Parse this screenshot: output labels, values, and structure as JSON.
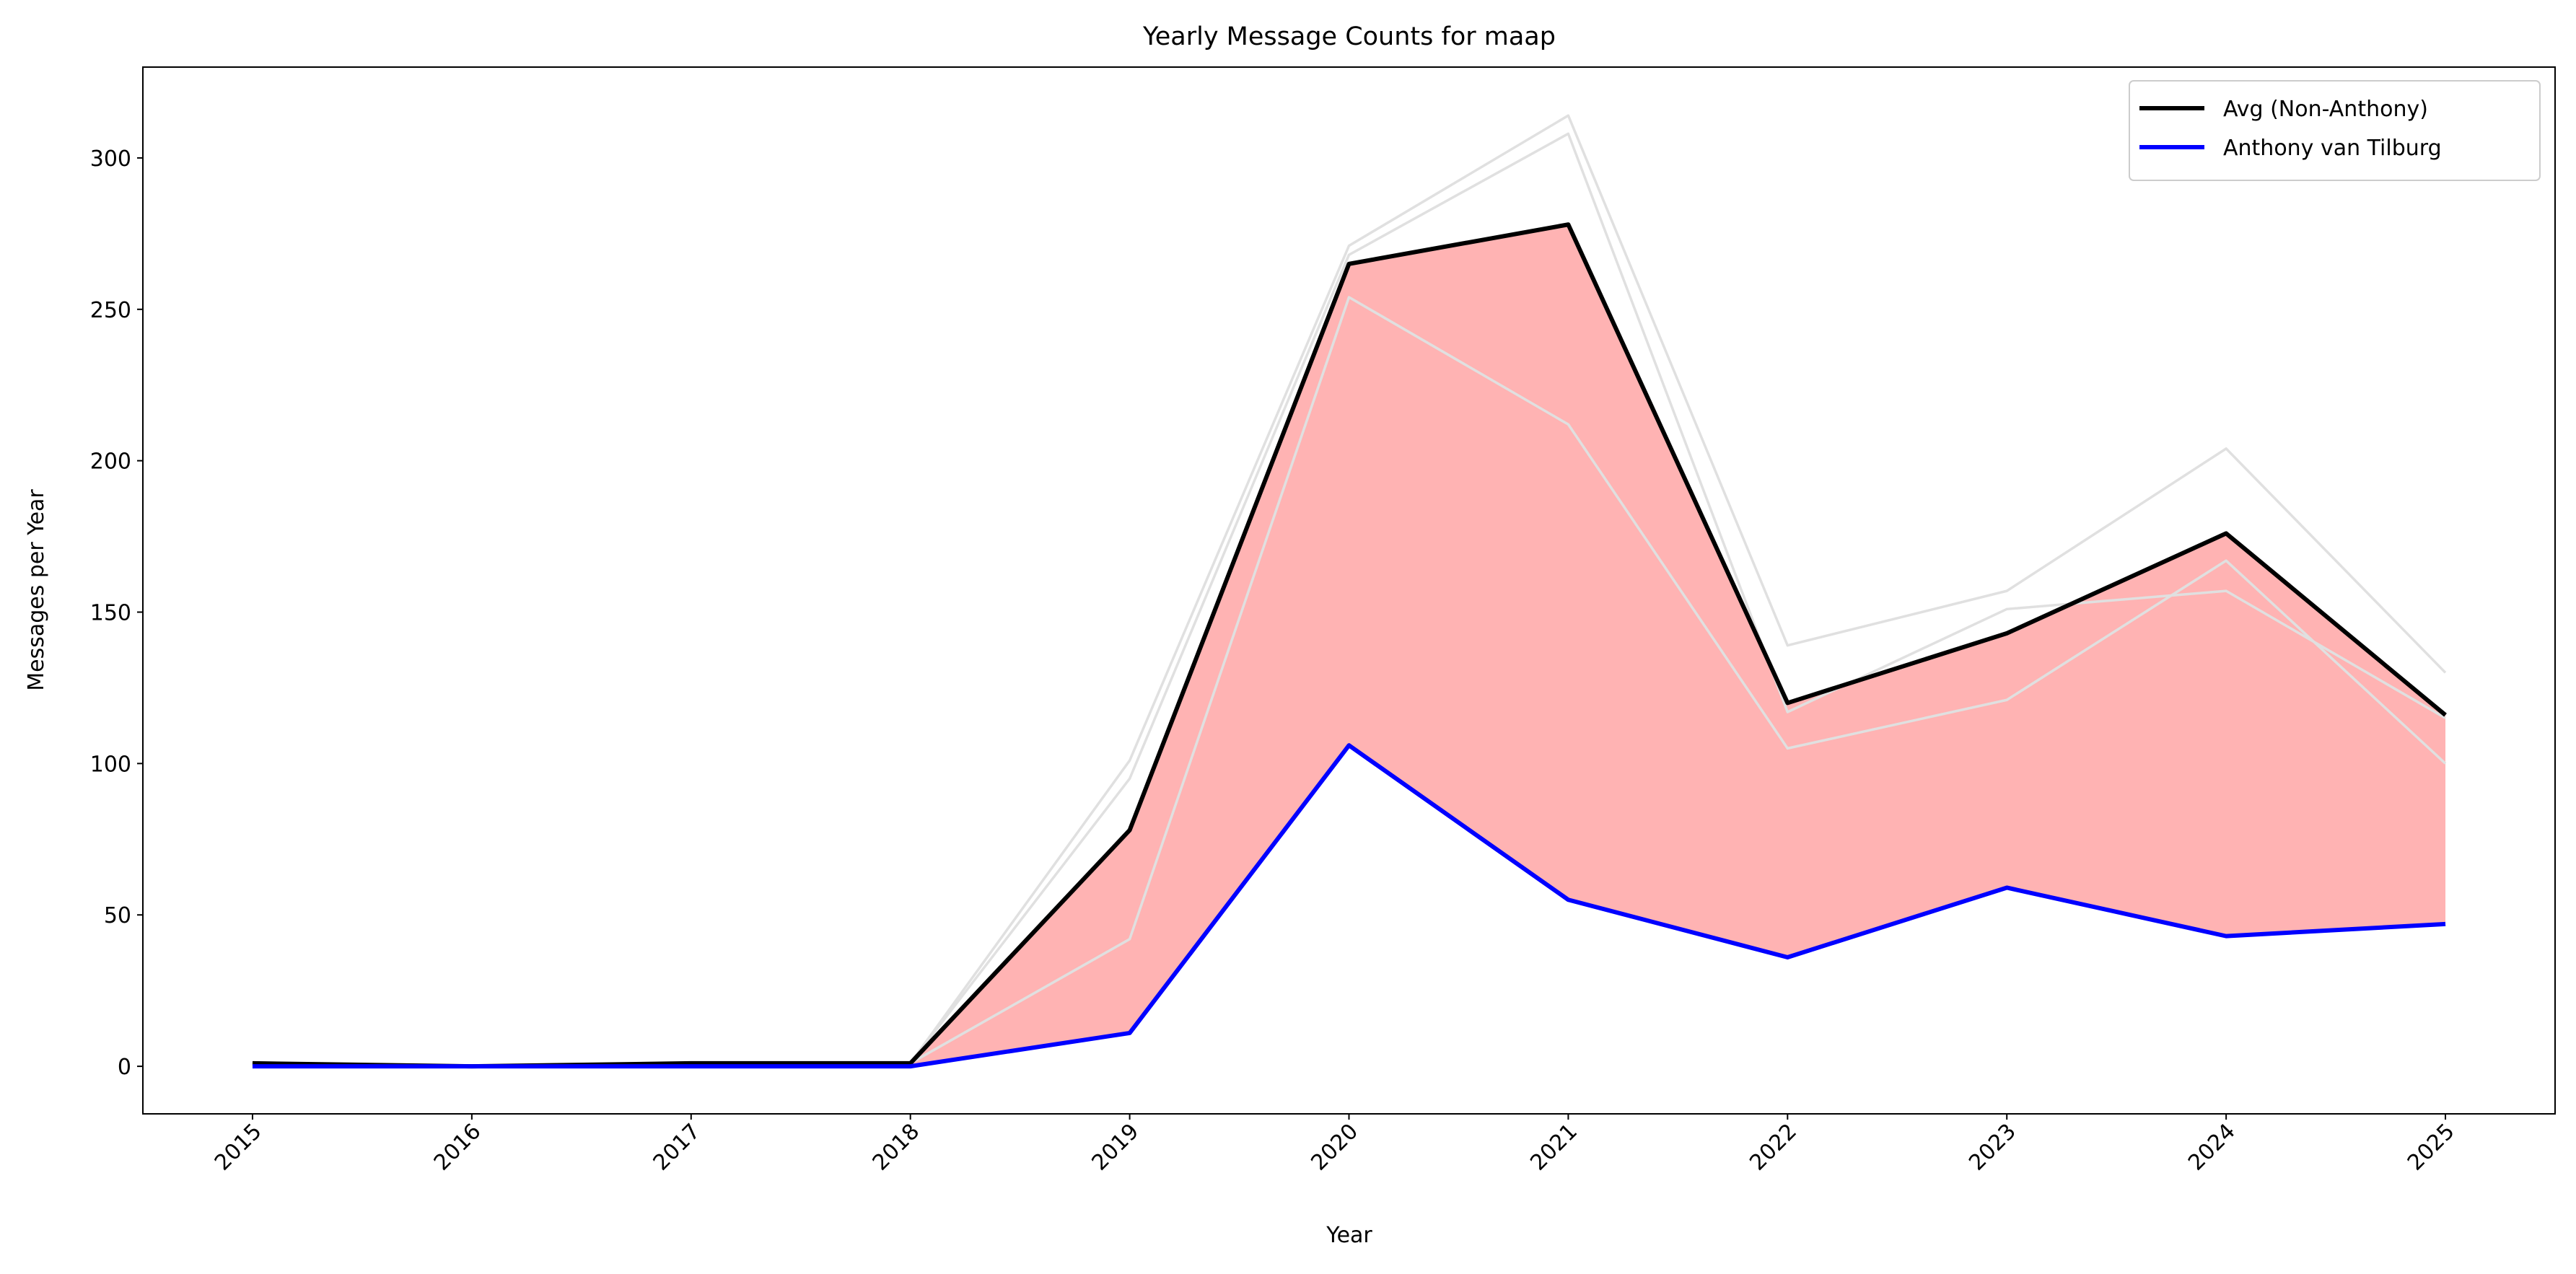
{
  "chart_data": {
    "type": "line",
    "title": "Yearly Message Counts for maap",
    "x_label": "Year",
    "y_label": "Messages per Year",
    "x": [
      2015,
      2016,
      2017,
      2018,
      2019,
      2020,
      2021,
      2022,
      2023,
      2024,
      2025
    ],
    "xlim": [
      2014.5,
      2025.5
    ],
    "xticks": [
      2015,
      2016,
      2017,
      2018,
      2019,
      2020,
      2021,
      2022,
      2023,
      2024,
      2025
    ],
    "ylim": [
      -15.7,
      330
    ],
    "yticks": [
      0,
      50,
      100,
      150,
      200,
      250,
      300
    ],
    "legend": "upper right",
    "fill_between_color": "#ffb3b3",
    "series": [
      {
        "name": "Avg (Non-Anthony)",
        "color": "#000000",
        "values": [
          1,
          0,
          1,
          1,
          78,
          265,
          278,
          120,
          143,
          176,
          116
        ]
      },
      {
        "name": "Anthony van Tilburg",
        "color": "#0000ff",
        "values": [
          0,
          0,
          0,
          0,
          11,
          106,
          55,
          36,
          59,
          43,
          47
        ]
      },
      {
        "color": "#e0e0e0",
        "values": [
          1,
          0,
          1,
          1,
          101,
          271,
          314,
          139,
          157,
          204,
          130
        ]
      },
      {
        "color": "#e0e0e0",
        "values": [
          1,
          0,
          1,
          1,
          95,
          268,
          308,
          117,
          151,
          157,
          115
        ]
      },
      {
        "color": "#e0e0e0",
        "values": [
          1,
          0,
          1,
          1,
          42,
          254,
          212,
          105,
          121,
          167,
          100
        ]
      }
    ]
  }
}
